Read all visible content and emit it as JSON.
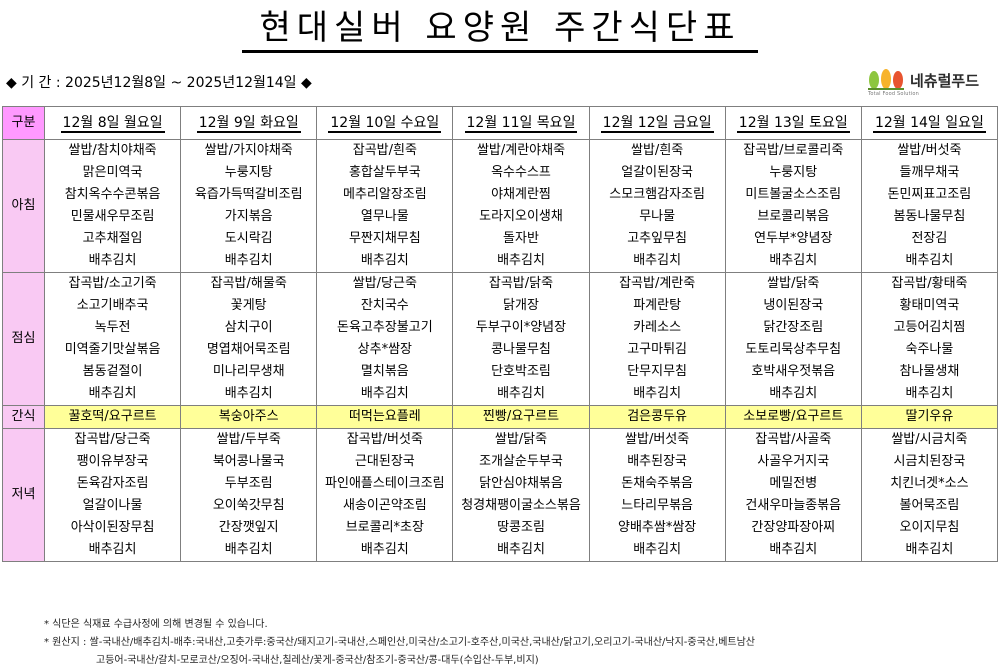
{
  "title": "현대실버 요양원 주간식단표",
  "period": "◆ 기 간 : 2025년12월8일 ~ 2025년12월14일 ◆",
  "logo": {
    "name": "네츄럴푸드",
    "sub": "Total Food Solution"
  },
  "header": {
    "category": "구분",
    "days": [
      "12월 8일 월요일",
      "12월 9일 화요일",
      "12월 10일 수요일",
      "12월 11일 목요일",
      "12월 12일 금요일",
      "12월 13일 토요일",
      "12월 14일 일요일"
    ]
  },
  "sections": {
    "breakfast": {
      "label": "아침",
      "rows": [
        [
          "쌀밥/참치야채죽",
          "쌀밥/가지야채죽",
          "잡곡밥/흰죽",
          "쌀밥/계란야채죽",
          "쌀밥/흰죽",
          "잡곡밥/브로콜리죽",
          "쌀밥/버섯죽"
        ],
        [
          "맑은미역국",
          "누룽지탕",
          "홍합살두부국",
          "옥수수스프",
          "얼갈이된장국",
          "누룽지탕",
          "들깨무채국"
        ],
        [
          "참치옥수수콘볶음",
          "육즙가득떡갈비조림",
          "메추리알장조림",
          "야채계란찜",
          "스모크햄감자조림",
          "미트볼굴소스조림",
          "돈민찌표고조림"
        ],
        [
          "민물새우무조림",
          "가지볶음",
          "열무나물",
          "도라지오이생채",
          "무나물",
          "브로콜리볶음",
          "봄동나물무침"
        ],
        [
          "고추채절임",
          "도시락김",
          "무짠지채무침",
          "돌자반",
          "고추잎무침",
          "연두부*양념장",
          "전장김"
        ],
        [
          "배추김치",
          "배추김치",
          "배추김치",
          "배추김치",
          "배추김치",
          "배추김치",
          "배추김치"
        ]
      ]
    },
    "lunch": {
      "label": "점심",
      "rows": [
        [
          "잡곡밥/소고기죽",
          "잡곡밥/해물죽",
          "쌀밥/당근죽",
          "잡곡밥/닭죽",
          "잡곡밥/계란죽",
          "쌀밥/닭죽",
          "잡곡밥/황태죽"
        ],
        [
          "소고기배추국",
          "꽃게탕",
          "잔치국수",
          "닭개장",
          "파계란탕",
          "냉이된장국",
          "황태미역국"
        ],
        [
          "녹두전",
          "삼치구이",
          "돈육고추장불고기",
          "두부구이*양념장",
          "카레소스",
          "닭간장조림",
          "고등어김치찜"
        ],
        [
          "미역줄기맛살볶음",
          "명엽채어묵조림",
          "상추*쌈장",
          "콩나물무침",
          "고구마튀김",
          "도토리묵상추무침",
          "숙주나물"
        ],
        [
          "봄동겉절이",
          "미나리무생채",
          "멸치볶음",
          "단호박조림",
          "단무지무침",
          "호박새우젓볶음",
          "참나물생채"
        ],
        [
          "배추김치",
          "배추김치",
          "배추김치",
          "배추김치",
          "배추김치",
          "배추김치",
          "배추김치"
        ]
      ]
    },
    "snack": {
      "label": "간식",
      "items": [
        "꿀호떡/요구르트",
        "복숭아주스",
        "떠먹는요플레",
        "찐빵/요구르트",
        "검은콩두유",
        "소보로빵/요구르트",
        "딸기우유"
      ]
    },
    "dinner": {
      "label": "저녁",
      "rows": [
        [
          "잡곡밥/당근죽",
          "쌀밥/두부죽",
          "잡곡밥/버섯죽",
          "쌀밥/닭죽",
          "쌀밥/버섯죽",
          "잡곡밥/사골죽",
          "쌀밥/시금치죽"
        ],
        [
          "팽이유부장국",
          "북어콩나물국",
          "근대된장국",
          "조개살순두부국",
          "배추된장국",
          "사골우거지국",
          "시금치된장국"
        ],
        [
          "돈육감자조림",
          "두부조림",
          "파인애플스테이크조림",
          "닭안심야채볶음",
          "돈채숙주볶음",
          "메밀전병",
          "치킨너겟*소스"
        ],
        [
          "얼갈이나물",
          "오이쑥갓무침",
          "새송이곤약조림",
          "청경채팽이굴소스볶음",
          "느타리무볶음",
          "건새우마늘종볶음",
          "볼어묵조림"
        ],
        [
          "아삭이된장무침",
          "간장깻잎지",
          "브로콜리*초장",
          "땅콩조림",
          "양배추쌈*쌈장",
          "간장양파장아찌",
          "오이지무침"
        ],
        [
          "배추김치",
          "배추김치",
          "배추김치",
          "배추김치",
          "배추김치",
          "배추김치",
          "배추김치"
        ]
      ]
    }
  },
  "notes": {
    "line1": "* 식단은 식재료 수급사정에 의해 변경될 수 있습니다.",
    "line2": "* 원산지 : 쌀-국내산/배추김치-배추:국내산,고춧가루:중국산/돼지고기-국내산,스페인산,미국산/소고기-호주산,미국산,국내산/닭고기,오리고기-국내산/낙지-중국산,베트남산",
    "line3": "고등어-국내산/갈치-모로코산/오징어-국내산,칠레산/꽃게-중국산/참조기-중국산/콩-대두(수입산-두부,비지)"
  }
}
